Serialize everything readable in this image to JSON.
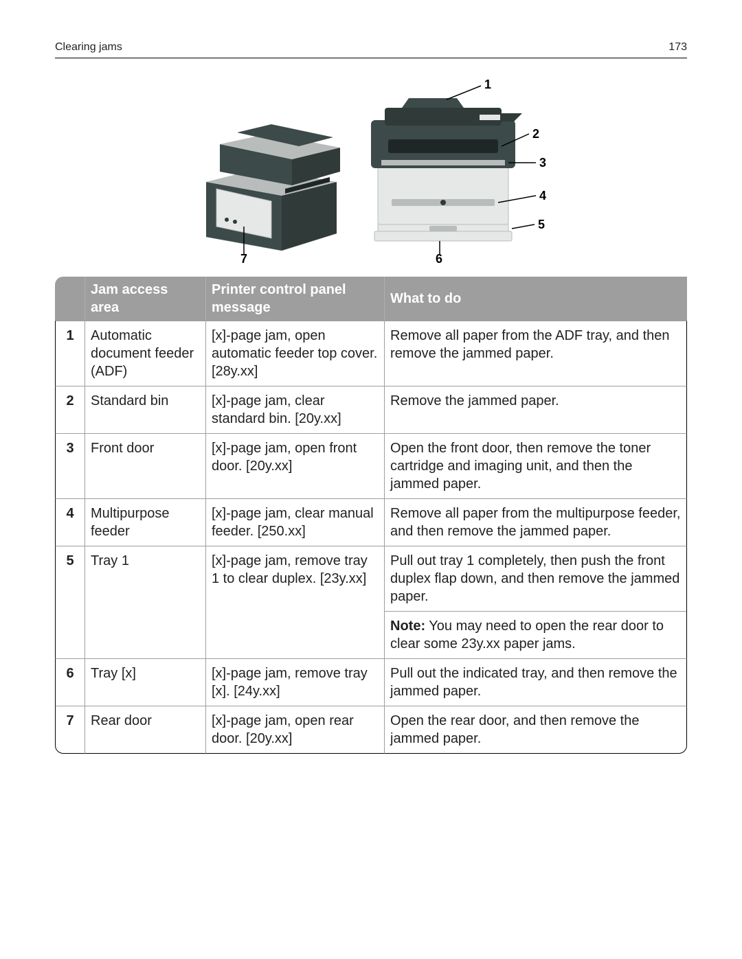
{
  "header": {
    "title": "Clearing jams",
    "page": "173"
  },
  "figure": {
    "callouts": [
      "1",
      "2",
      "3",
      "4",
      "5",
      "6",
      "7"
    ],
    "colors": {
      "dark": "#3c4a49",
      "light": "#e6e8e7",
      "mid": "#b8bcbb",
      "panel": "#2f3a39",
      "slot": "#1f2726",
      "label": "#000000",
      "leader": "#000000"
    }
  },
  "table": {
    "headers": [
      "",
      "Jam access area",
      "Printer control panel message",
      "What to do"
    ],
    "rows": [
      {
        "n": "1",
        "area": "Automatic document feeder (ADF)",
        "msg": "[x]-page jam, open automatic feeder top cover. [28y.xx]",
        "todo": "Remove all paper from the ADF tray, and then remove the jammed paper."
      },
      {
        "n": "2",
        "area": "Standard bin",
        "msg": "[x]-page jam, clear standard bin. [20y.xx]",
        "todo": "Remove the jammed paper."
      },
      {
        "n": "3",
        "area": "Front door",
        "msg": "[x]-page jam, open front door. [20y.xx]",
        "todo": "Open the front door, then remove the toner cartridge and imaging unit, and then the jammed paper."
      },
      {
        "n": "4",
        "area": "Multipurpose feeder",
        "msg": "[x]-page jam, clear manual feeder. [250.xx]",
        "todo": "Remove all paper from the multipurpose feeder, and then remove the jammed paper."
      },
      {
        "n": "5",
        "area": "Tray 1",
        "msg": "[x]-page jam, remove tray 1 to clear duplex. [23y.xx]",
        "todo": "Pull out tray 1 completely, then push the front duplex flap down, and then remove the jammed paper.",
        "note_label": "Note:",
        "note": " You may need to open the rear door to clear some 23y.xx paper jams."
      },
      {
        "n": "6",
        "area": "Tray [x]",
        "msg": "[x]-page jam, remove tray [x]. [24y.xx]",
        "todo": "Pull out the indicated tray, and then remove the jammed paper."
      },
      {
        "n": "7",
        "area": "Rear door",
        "msg": "[x]-page jam, open rear door. [20y.xx]",
        "todo": "Open the rear door, and then remove the jammed paper."
      }
    ]
  }
}
